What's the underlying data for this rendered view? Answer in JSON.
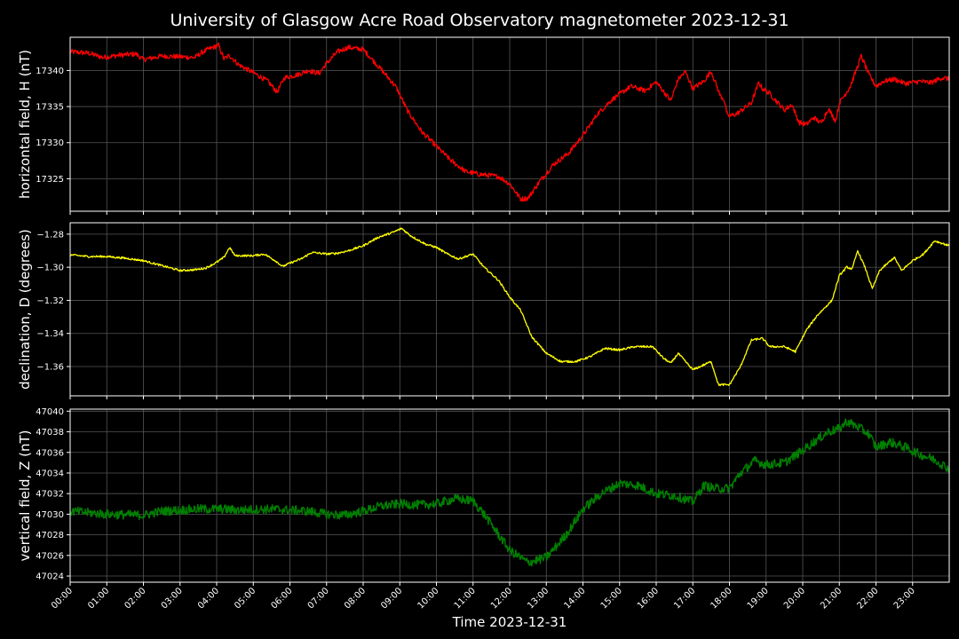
{
  "chart_data": {
    "type": "line",
    "title": "University of Glasgow Acre Road Observatory magnetometer 2023-12-31",
    "xlabel": "Time 2023-12-31",
    "x_ticks": [
      "00:00",
      "01:00",
      "02:00",
      "03:00",
      "04:00",
      "05:00",
      "06:00",
      "07:00",
      "08:00",
      "09:00",
      "10:00",
      "11:00",
      "12:00",
      "13:00",
      "14:00",
      "15:00",
      "16:00",
      "17:00",
      "18:00",
      "19:00",
      "20:00",
      "21:00",
      "22:00",
      "23:00"
    ],
    "xlim": [
      0,
      24
    ],
    "grid": true,
    "panels": [
      {
        "name": "H",
        "ylabel": "horizontal field, H (nT)",
        "color": "#ff0000",
        "ylim": [
          17320.5,
          17344.6
        ],
        "yticks": [
          17325,
          17330,
          17335,
          17340
        ],
        "yticklabels": [
          "17325",
          "17330",
          "17335",
          "17340"
        ],
        "noise": 0.35,
        "points": [
          [
            0,
            17342.6
          ],
          [
            0.5,
            17342.4
          ],
          [
            0.9,
            17341.8
          ],
          [
            1.3,
            17342.1
          ],
          [
            1.8,
            17342.3
          ],
          [
            2,
            17341.5
          ],
          [
            2.5,
            17342.0
          ],
          [
            3,
            17341.9
          ],
          [
            3.4,
            17341.8
          ],
          [
            3.6,
            17342.5
          ],
          [
            3.8,
            17343.0
          ],
          [
            4.05,
            17343.5
          ],
          [
            4.2,
            17341.6
          ],
          [
            4.35,
            17342.1
          ],
          [
            4.6,
            17340.8
          ],
          [
            5,
            17339.7
          ],
          [
            5.4,
            17338.5
          ],
          [
            5.65,
            17337.0
          ],
          [
            5.85,
            17339.0
          ],
          [
            6.2,
            17339.4
          ],
          [
            6.5,
            17340.0
          ],
          [
            6.8,
            17339.6
          ],
          [
            7,
            17341.0
          ],
          [
            7.3,
            17342.6
          ],
          [
            7.6,
            17343.2
          ],
          [
            8,
            17342.9
          ],
          [
            8.2,
            17341.8
          ],
          [
            8.6,
            17339.5
          ],
          [
            8.9,
            17337.7
          ],
          [
            9.2,
            17334.5
          ],
          [
            9.6,
            17331.5
          ],
          [
            10,
            17329.5
          ],
          [
            10.4,
            17327.5
          ],
          [
            10.8,
            17326.0
          ],
          [
            11.2,
            17325.6
          ],
          [
            11.7,
            17325.3
          ],
          [
            12,
            17324.3
          ],
          [
            12.3,
            17322.2
          ],
          [
            12.5,
            17322.3
          ],
          [
            12.8,
            17324.5
          ],
          [
            13.2,
            17327.0
          ],
          [
            13.6,
            17328.5
          ],
          [
            14,
            17331.0
          ],
          [
            14.4,
            17334.0
          ],
          [
            14.8,
            17336.0
          ],
          [
            15.3,
            17337.8
          ],
          [
            15.7,
            17337.2
          ],
          [
            16,
            17338.4
          ],
          [
            16.4,
            17335.8
          ],
          [
            16.6,
            17338.8
          ],
          [
            16.8,
            17339.8
          ],
          [
            17,
            17337.5
          ],
          [
            17.3,
            17338.5
          ],
          [
            17.5,
            17339.9
          ],
          [
            17.75,
            17336.5
          ],
          [
            17.85,
            17336.0
          ],
          [
            17.95,
            17333.6
          ],
          [
            18.2,
            17334.0
          ],
          [
            18.6,
            17335.5
          ],
          [
            18.8,
            17338.3
          ],
          [
            18.9,
            17337.5
          ],
          [
            19.1,
            17336.8
          ],
          [
            19.5,
            17334.5
          ],
          [
            19.7,
            17335.3
          ],
          [
            19.9,
            17332.8
          ],
          [
            20.1,
            17332.5
          ],
          [
            20.3,
            17333.5
          ],
          [
            20.5,
            17332.7
          ],
          [
            20.7,
            17334.7
          ],
          [
            20.9,
            17333.0
          ],
          [
            21,
            17335.5
          ],
          [
            21.3,
            17337.8
          ],
          [
            21.6,
            17342.0
          ],
          [
            21.8,
            17339.5
          ],
          [
            22,
            17337.8
          ],
          [
            22.2,
            17338.5
          ],
          [
            22.5,
            17338.8
          ],
          [
            22.8,
            17338.2
          ],
          [
            23.2,
            17338.5
          ],
          [
            23.5,
            17338.3
          ],
          [
            23.8,
            17339.0
          ],
          [
            24,
            17338.8
          ]
        ]
      },
      {
        "name": "D",
        "ylabel": "declination, D (degrees)",
        "color": "#ffff00",
        "ylim": [
          -1.3777,
          -1.2731
        ],
        "yticks": [
          -1.36,
          -1.34,
          -1.32,
          -1.3,
          -1.28
        ],
        "yticklabels": [
          "−1.36",
          "−1.34",
          "−1.32",
          "−1.30",
          "−1.28"
        ],
        "noise": 0.0006,
        "points": [
          [
            0,
            -1.2925
          ],
          [
            0.5,
            -1.2935
          ],
          [
            1,
            -1.2935
          ],
          [
            1.5,
            -1.2945
          ],
          [
            2,
            -1.296
          ],
          [
            2.5,
            -1.299
          ],
          [
            3,
            -1.302
          ],
          [
            3.4,
            -1.3015
          ],
          [
            3.7,
            -1.3005
          ],
          [
            4,
            -1.297
          ],
          [
            4.2,
            -1.294
          ],
          [
            4.35,
            -1.288
          ],
          [
            4.5,
            -1.293
          ],
          [
            5,
            -1.293
          ],
          [
            5.3,
            -1.292
          ],
          [
            5.6,
            -1.296
          ],
          [
            5.8,
            -1.2995
          ],
          [
            6,
            -1.2975
          ],
          [
            6.3,
            -1.295
          ],
          [
            6.6,
            -1.291
          ],
          [
            7,
            -1.292
          ],
          [
            7.3,
            -1.2915
          ],
          [
            7.6,
            -1.29
          ],
          [
            8,
            -1.287
          ],
          [
            8.4,
            -1.282
          ],
          [
            8.8,
            -1.279
          ],
          [
            9.05,
            -1.2765
          ],
          [
            9.3,
            -1.281
          ],
          [
            9.7,
            -1.286
          ],
          [
            10,
            -1.288
          ],
          [
            10.3,
            -1.292
          ],
          [
            10.6,
            -1.295
          ],
          [
            11,
            -1.292
          ],
          [
            11.3,
            -1.3
          ],
          [
            11.7,
            -1.308
          ],
          [
            12,
            -1.318
          ],
          [
            12.3,
            -1.326
          ],
          [
            12.6,
            -1.342
          ],
          [
            13,
            -1.352
          ],
          [
            13.4,
            -1.357
          ],
          [
            13.8,
            -1.357
          ],
          [
            14.2,
            -1.354
          ],
          [
            14.6,
            -1.349
          ],
          [
            15,
            -1.35
          ],
          [
            15.4,
            -1.348
          ],
          [
            15.9,
            -1.348
          ],
          [
            16.2,
            -1.355
          ],
          [
            16.4,
            -1.358
          ],
          [
            16.6,
            -1.352
          ],
          [
            17,
            -1.362
          ],
          [
            17.3,
            -1.359
          ],
          [
            17.5,
            -1.357
          ],
          [
            17.7,
            -1.371
          ],
          [
            18,
            -1.371
          ],
          [
            18.3,
            -1.36
          ],
          [
            18.6,
            -1.344
          ],
          [
            18.9,
            -1.343
          ],
          [
            19.1,
            -1.348
          ],
          [
            19.5,
            -1.348
          ],
          [
            19.8,
            -1.351
          ],
          [
            20.1,
            -1.338
          ],
          [
            20.4,
            -1.329
          ],
          [
            20.8,
            -1.32
          ],
          [
            21,
            -1.305
          ],
          [
            21.2,
            -1.3
          ],
          [
            21.35,
            -1.301
          ],
          [
            21.5,
            -1.29
          ],
          [
            21.7,
            -1.3
          ],
          [
            21.9,
            -1.313
          ],
          [
            22.1,
            -1.302
          ],
          [
            22.3,
            -1.298
          ],
          [
            22.5,
            -1.294
          ],
          [
            22.7,
            -1.302
          ],
          [
            23,
            -1.296
          ],
          [
            23.3,
            -1.292
          ],
          [
            23.6,
            -1.284
          ],
          [
            24,
            -1.287
          ]
        ]
      },
      {
        "name": "Z",
        "ylabel": "vertical field, Z (nT)",
        "color": "#008000",
        "ylim": [
          47023.4,
          47040.2
        ],
        "yticks": [
          47024,
          47026,
          47028,
          47030,
          47032,
          47034,
          47036,
          47038,
          47040
        ],
        "yticklabels": [
          "47024",
          "47026",
          "47028",
          "47030",
          "47032",
          "47034",
          "47036",
          "47038",
          "47040"
        ],
        "noise": 0.45,
        "points": [
          [
            0,
            47030.3
          ],
          [
            1,
            47030.0
          ],
          [
            2,
            47029.9
          ],
          [
            2.5,
            47030.3
          ],
          [
            3.5,
            47030.5
          ],
          [
            4.2,
            47030.5
          ],
          [
            4.5,
            47030.4
          ],
          [
            5.5,
            47030.5
          ],
          [
            6.5,
            47030.3
          ],
          [
            7,
            47030.0
          ],
          [
            7.5,
            47029.9
          ],
          [
            8,
            47030.3
          ],
          [
            8.5,
            47030.8
          ],
          [
            9,
            47031.0
          ],
          [
            9.5,
            47030.9
          ],
          [
            10,
            47031.0
          ],
          [
            10.5,
            47031.5
          ],
          [
            11,
            47031.3
          ],
          [
            11.3,
            47030.0
          ],
          [
            11.6,
            47028.5
          ],
          [
            12,
            47026.5
          ],
          [
            12.5,
            47025.3
          ],
          [
            13,
            47025.8
          ],
          [
            13.3,
            47027.0
          ],
          [
            13.6,
            47028.3
          ],
          [
            14,
            47030.5
          ],
          [
            14.5,
            47032.0
          ],
          [
            15,
            47033.0
          ],
          [
            15.5,
            47032.8
          ],
          [
            16,
            47032.0
          ],
          [
            16.5,
            47031.8
          ],
          [
            17,
            47031.2
          ],
          [
            17.3,
            47032.8
          ],
          [
            17.6,
            47032.5
          ],
          [
            18,
            47032.5
          ],
          [
            18.3,
            47034.0
          ],
          [
            18.7,
            47035.2
          ],
          [
            19,
            47034.8
          ],
          [
            19.5,
            47035.0
          ],
          [
            20,
            47036.2
          ],
          [
            20.3,
            47037.0
          ],
          [
            20.7,
            47038.0
          ],
          [
            21,
            47038.3
          ],
          [
            21.2,
            47039.0
          ],
          [
            21.5,
            47038.5
          ],
          [
            21.8,
            47037.8
          ],
          [
            22,
            47036.5
          ],
          [
            22.4,
            47037.0
          ],
          [
            22.8,
            47036.5
          ],
          [
            23.2,
            47035.8
          ],
          [
            23.6,
            47035.3
          ],
          [
            24,
            47034.4
          ]
        ]
      }
    ]
  }
}
